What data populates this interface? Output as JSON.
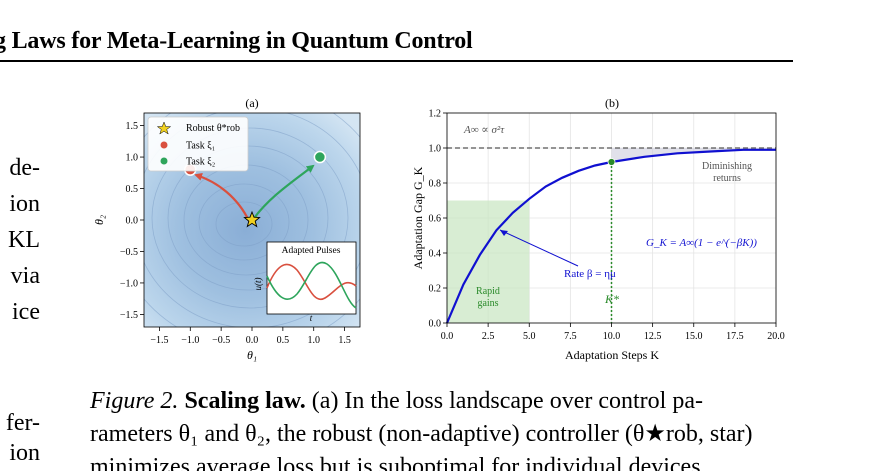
{
  "header": {
    "title": "g Laws for Meta-Learning in Quantum Control"
  },
  "left_text": {
    "lines_top": [
      "de-",
      "ion",
      "KL",
      "via",
      "ice"
    ],
    "lines_bottom": [
      "fer-",
      "ion"
    ]
  },
  "panel_a": {
    "label": "(a)",
    "xlabel": "θ₁",
    "ylabel": "θ₂",
    "x_ticks": [
      "−1.5",
      "−1.0",
      "−0.5",
      "0.0",
      "0.5",
      "1.0",
      "1.5"
    ],
    "y_ticks": [
      "1.5",
      "1.0",
      "0.5",
      "0.0",
      "−0.5",
      "−1.0",
      "−1.5"
    ],
    "legend": [
      {
        "label": "Robust θ*rob",
        "color": "#f0d020",
        "marker": "star"
      },
      {
        "label": "Task ξ₁",
        "color": "#d9503f",
        "marker": "circle"
      },
      {
        "label": "Task ξ₂",
        "color": "#2ea55c",
        "marker": "circle"
      }
    ],
    "points": {
      "robust": [
        0.0,
        0.0
      ],
      "task1": [
        -1.0,
        0.8
      ],
      "task2": [
        1.1,
        1.0
      ]
    },
    "inset": {
      "title": "Adapted Pulses",
      "xlabel": "t",
      "ylabel": "u(t)"
    }
  },
  "panel_b": {
    "label": "(b)",
    "xlabel": "Adaptation Steps K",
    "ylabel": "Adaptation Gap G_K",
    "x_ticks": [
      "0.0",
      "2.5",
      "5.0",
      "7.5",
      "10.0",
      "12.5",
      "15.0",
      "17.5",
      "20.0"
    ],
    "y_ticks": [
      "0.0",
      "0.2",
      "0.4",
      "0.6",
      "0.8",
      "1.0",
      "1.2"
    ],
    "asymptote_label": "A∞ ∝ σ²τ",
    "diminishing_label": [
      "Diminishing",
      "returns"
    ],
    "rapid_label": [
      "Rapid",
      "gains"
    ],
    "formula": "G_K = A∞(1 − e^(−βK))",
    "rate_label": "Rate β = ημ",
    "kstar_label": "K*",
    "colors": {
      "curve": "#1010d0",
      "rapid": "#c8e6c0",
      "kstar": "#2a8a2a",
      "asymptote": "#555555"
    }
  },
  "chart_data": [
    {
      "type": "scatter",
      "title": "(a)",
      "xlabel": "θ₁",
      "ylabel": "θ₂",
      "xlim": [
        -1.75,
        1.75
      ],
      "ylim": [
        -1.7,
        1.7
      ],
      "series": [
        {
          "name": "Robust θ*rob",
          "x": [
            0.0
          ],
          "y": [
            0.0
          ]
        },
        {
          "name": "Task ξ₁",
          "x": [
            -1.0
          ],
          "y": [
            0.8
          ]
        },
        {
          "name": "Task ξ₂",
          "x": [
            1.1
          ],
          "y": [
            1.0
          ]
        }
      ]
    },
    {
      "type": "line",
      "title": "(b)",
      "xlabel": "Adaptation Steps K",
      "ylabel": "Adaptation Gap G_K",
      "xlim": [
        0,
        20
      ],
      "ylim": [
        0,
        1.2
      ],
      "asymptote": 1.0,
      "k_star": 10,
      "rapid_region": [
        0,
        5
      ],
      "series": [
        {
          "x": [
            0,
            1,
            2,
            3,
            4,
            5,
            6,
            7,
            8,
            9,
            10,
            12,
            14,
            16,
            18,
            20
          ],
          "y": [
            0.0,
            0.22,
            0.39,
            0.53,
            0.63,
            0.71,
            0.78,
            0.83,
            0.87,
            0.9,
            0.92,
            0.95,
            0.97,
            0.98,
            0.99,
            0.99
          ]
        }
      ]
    }
  ],
  "caption": {
    "label": "Figure 2.",
    "title": "Scaling law.",
    "line1_rest": "(a) In the loss landscape over control pa-",
    "line2": "rameters θ₁ and θ₂, the robust (non-adaptive) controller (θ★rob, star)",
    "line3": "minimizes average loss but is suboptimal for individual devices"
  }
}
